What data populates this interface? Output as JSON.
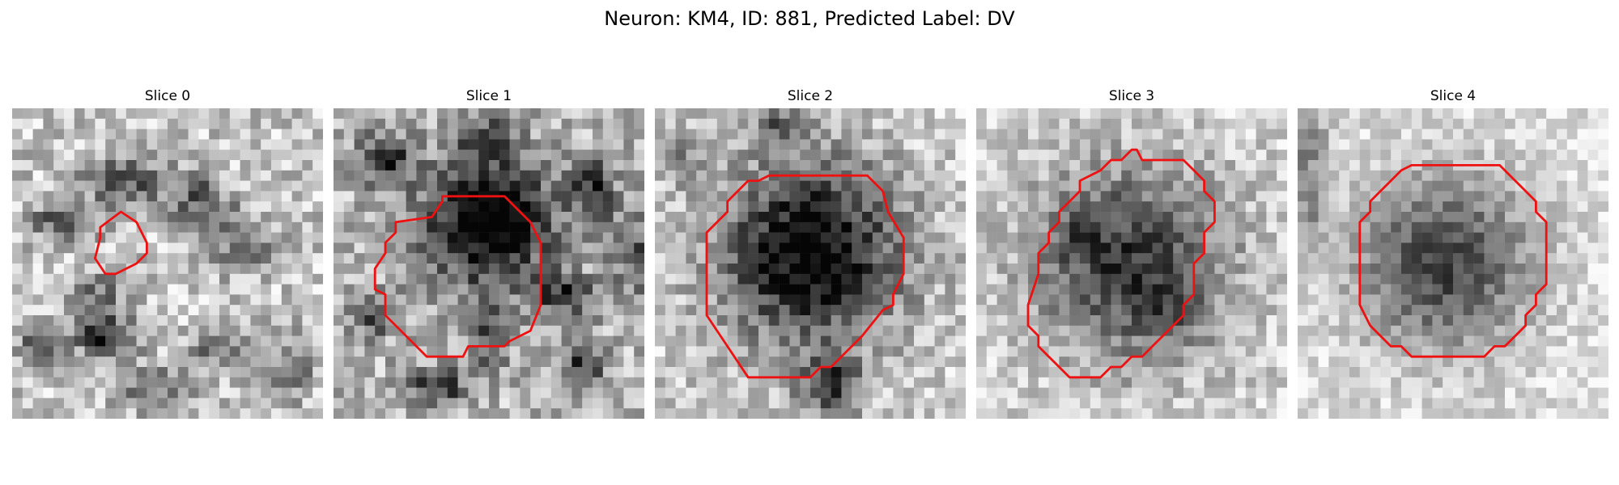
{
  "figure": {
    "title": "Neuron: KM4, ID: 881, Predicted Label: DV",
    "overlay_color": "#ee1111"
  },
  "panels": [
    {
      "title": "Slice 0"
    },
    {
      "title": "Slice 1"
    },
    {
      "title": "Slice 2"
    },
    {
      "title": "Slice 3"
    },
    {
      "title": "Slice 4"
    }
  ]
}
